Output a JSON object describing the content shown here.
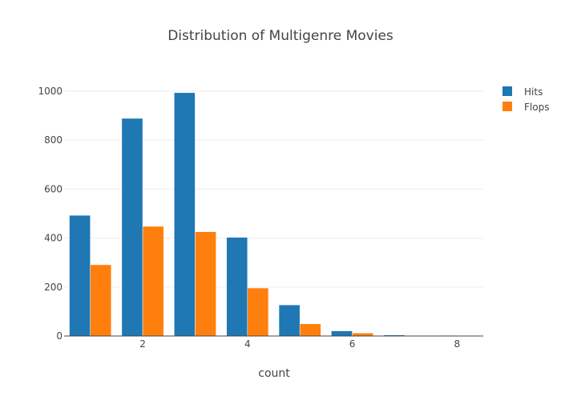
{
  "chart_data": {
    "type": "bar",
    "title": "Distribution of Multigenre Movies",
    "xlabel": "count",
    "ylabel": "",
    "categories": [
      1,
      2,
      3,
      4,
      5,
      6,
      7,
      8
    ],
    "x_ticks": [
      2,
      4,
      6,
      8
    ],
    "y_ticks": [
      0,
      200,
      400,
      600,
      800,
      1000
    ],
    "xlim": [
      0.5,
      8.5
    ],
    "ylim": [
      0,
      1000
    ],
    "grid": true,
    "legend_position": "top-right",
    "series": [
      {
        "name": "Hits",
        "color": "#1f77b4",
        "values": [
          493,
          889,
          994,
          403,
          127,
          21,
          4,
          2
        ]
      },
      {
        "name": "Flops",
        "color": "#ff7f0e",
        "values": [
          291,
          448,
          426,
          196,
          50,
          12,
          1,
          1
        ]
      }
    ]
  }
}
